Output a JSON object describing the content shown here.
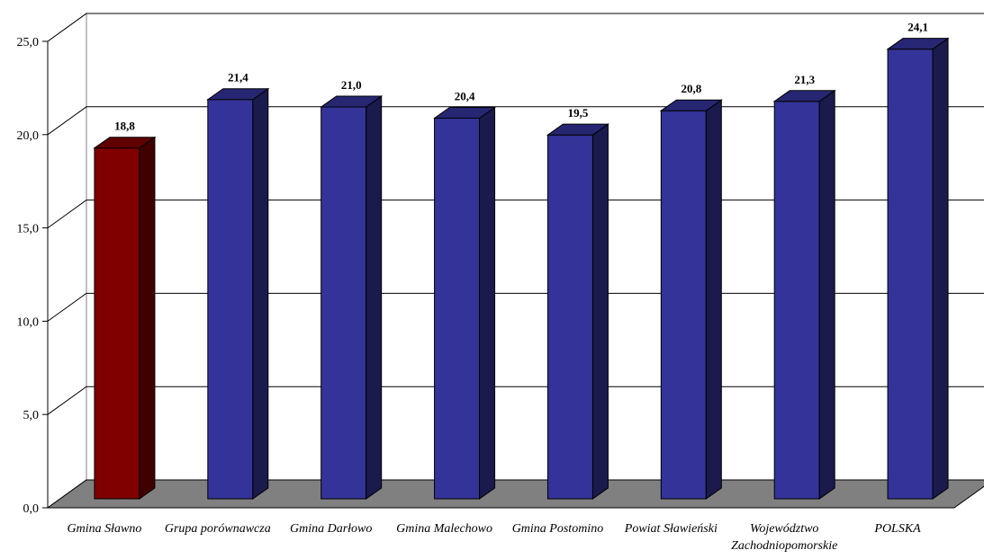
{
  "chart_data": {
    "type": "bar",
    "style": "3d-column",
    "title": "",
    "xlabel": "",
    "ylabel": "",
    "ylim": [
      0,
      25
    ],
    "yticks": [
      "0,0",
      "5,0",
      "10,0",
      "15,0",
      "20,0",
      "25,0"
    ],
    "grid": true,
    "legend": "none",
    "categories": [
      "Gmina Sławno",
      "Grupa porównawcza",
      "Gmina Darłowo",
      "Gmina Malechowo",
      "Gmina Postomino",
      "Powiat Sławieński",
      "Województwo Zachodniopomorskie",
      "POLSKA"
    ],
    "category_label_lines": [
      [
        "Gmina Sławno"
      ],
      [
        "Grupa porównawcza"
      ],
      [
        "Gmina Darłowo"
      ],
      [
        "Gmina Malechowo"
      ],
      [
        "Gmina Postomino"
      ],
      [
        "Powiat Sławieński"
      ],
      [
        "Województwo",
        "Zachodniopomorskie"
      ],
      [
        "POLSKA"
      ]
    ],
    "values": [
      18.8,
      21.4,
      21.0,
      20.4,
      19.5,
      20.8,
      21.3,
      24.1
    ],
    "value_labels": [
      "18,8",
      "21,4",
      "21,0",
      "20,4",
      "19,5",
      "20,8",
      "21,3",
      "24,1"
    ],
    "bar_colors": [
      "#800000",
      "#333399",
      "#333399",
      "#333399",
      "#333399",
      "#333399",
      "#333399",
      "#333399"
    ],
    "colors": {
      "highlight": "#800000",
      "bar": "#333399",
      "floor": "#808080",
      "wall": "#ffffff",
      "axis": "#000000"
    }
  }
}
